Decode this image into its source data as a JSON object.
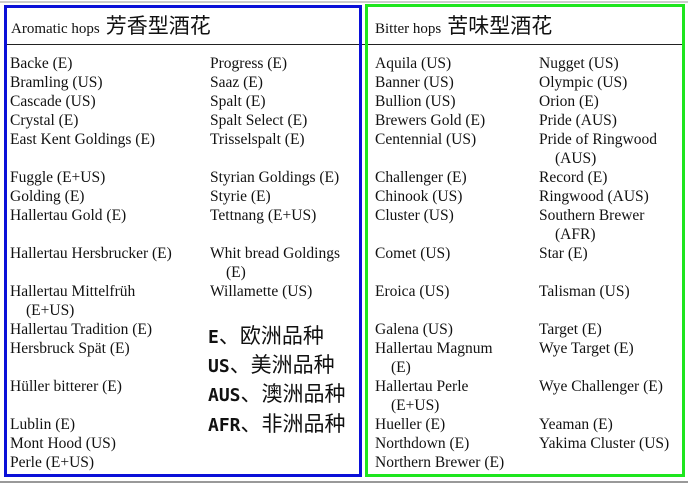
{
  "colors": {
    "aromatic_border": "#0a10d8",
    "bitter_border": "#1ee61e"
  },
  "aromatic": {
    "title": "Aromatic hops",
    "title_zh": "芳香型酒花",
    "col1": [
      {
        "text": "Backe (E)"
      },
      {
        "text": "Bramling (US)"
      },
      {
        "text": "Cascade (US)"
      },
      {
        "text": "Crystal (E)"
      },
      {
        "text": "East Kent Goldings (E)"
      },
      {
        "text": "Fuggle (E+US)"
      },
      {
        "text": "Golding (E)"
      },
      {
        "text": "Hallertau Gold (E)"
      },
      {
        "text": "Hallertau Hersbrucker (E)"
      },
      {
        "text": "Hallertau Mittelfrüh",
        "cont": "(E+US)"
      },
      {
        "text": "Hallertau Tradition (E)"
      },
      {
        "text": "Hersbruck Spät (E)"
      },
      {
        "text": "Hüller bitterer (E)"
      },
      {
        "text": "Lublin (E)"
      },
      {
        "text": "Mont Hood (US)"
      },
      {
        "text": "Perle (E+US)"
      }
    ],
    "col2": [
      {
        "text": "Progress (E)"
      },
      {
        "text": "Saaz (E)"
      },
      {
        "text": "Spalt (E)"
      },
      {
        "text": "Spalt Select (E)"
      },
      {
        "text": "Trisselspalt (E)"
      },
      {
        "text": "Styrian Goldings (E)"
      },
      {
        "text": "Styrie (E)"
      },
      {
        "text": "Tettnang (E+US)"
      },
      {
        "text": "Whit bread Goldings",
        "cont": "(E)"
      },
      {
        "text": "Willamette (US)"
      }
    ]
  },
  "legend": [
    {
      "code": "E",
      "label": "、欧洲品种"
    },
    {
      "code": "US",
      "label": "、美洲品种"
    },
    {
      "code": "AUS",
      "label": "、澳洲品种"
    },
    {
      "code": "AFR",
      "label": "、非洲品种"
    }
  ],
  "bitter": {
    "title": "Bitter hops",
    "title_zh": "苦味型酒花",
    "col1": [
      {
        "text": "Aquila (US)"
      },
      {
        "text": "Banner (US)"
      },
      {
        "text": "Bullion (US)"
      },
      {
        "text": "Brewers Gold (E)"
      },
      {
        "text": "Centennial (US)"
      },
      {
        "text": "Challenger (E)"
      },
      {
        "text": "Chinook (US)"
      },
      {
        "text": "Cluster (US)"
      },
      {
        "text": "Comet (US)"
      },
      {
        "text": "Eroica (US)"
      },
      {
        "text": "Galena (US)"
      },
      {
        "text": "Hallertau Magnum",
        "cont": "(E)"
      },
      {
        "text": "Hallertau Perle",
        "cont": "(E+US)"
      },
      {
        "text": "Hueller (E)"
      },
      {
        "text": "Northdown (E)"
      },
      {
        "text": "Northern Brewer (E)"
      }
    ],
    "col2": [
      {
        "text": "Nugget (US)"
      },
      {
        "text": "Olympic (US)"
      },
      {
        "text": "Orion (E)"
      },
      {
        "text": "Pride (AUS)"
      },
      {
        "text": "Pride of Ringwood",
        "cont": "(AUS)"
      },
      {
        "text": "Record (E)"
      },
      {
        "text": "Ringwood (AUS)"
      },
      {
        "text": "Southern Brewer",
        "cont": "(AFR)"
      },
      {
        "text": "Star (E)"
      },
      {
        "text": "Talisman (US)"
      },
      {
        "text": "Target (E)"
      },
      {
        "text": "Wye Target (E)"
      },
      {
        "text": "Wye Challenger (E)"
      },
      {
        "text": "Yeaman (E)"
      },
      {
        "text": "Yakima Cluster (US)"
      }
    ]
  }
}
